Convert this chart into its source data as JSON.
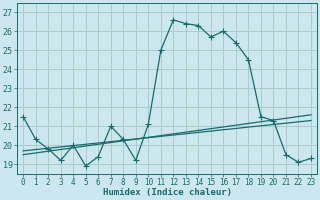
{
  "title": "",
  "xlabel": "Humidex (Indice chaleur)",
  "bg_color": "#cce8ee",
  "grid_color": "#aacccc",
  "line_color": "#1a6b6b",
  "xlim": [
    -0.5,
    23.5
  ],
  "ylim": [
    18.5,
    27.5
  ],
  "yticks": [
    19,
    20,
    21,
    22,
    23,
    24,
    25,
    26,
    27
  ],
  "xticks": [
    0,
    1,
    2,
    3,
    4,
    5,
    6,
    7,
    8,
    9,
    10,
    11,
    12,
    13,
    14,
    15,
    16,
    17,
    18,
    19,
    20,
    21,
    22,
    23
  ],
  "main_x": [
    0,
    1,
    2,
    3,
    4,
    5,
    6,
    7,
    8,
    9,
    10,
    11,
    12,
    13,
    14,
    15,
    16,
    17,
    18,
    19,
    20,
    21,
    22,
    23
  ],
  "main_y": [
    21.5,
    20.3,
    19.8,
    19.2,
    20.0,
    18.9,
    19.4,
    21.0,
    20.3,
    19.2,
    21.1,
    25.0,
    26.6,
    26.4,
    26.3,
    25.7,
    26.0,
    25.4,
    24.5,
    21.5,
    21.3,
    19.5,
    19.1,
    19.3
  ],
  "trend1_x": [
    0,
    23
  ],
  "trend1_y": [
    19.7,
    21.3
  ],
  "trend2_x": [
    0,
    23
  ],
  "trend2_y": [
    19.5,
    21.6
  ],
  "marker_size": 2.0,
  "line_width": 0.9,
  "tick_fontsize": 5.5,
  "xlabel_fontsize": 6.5
}
